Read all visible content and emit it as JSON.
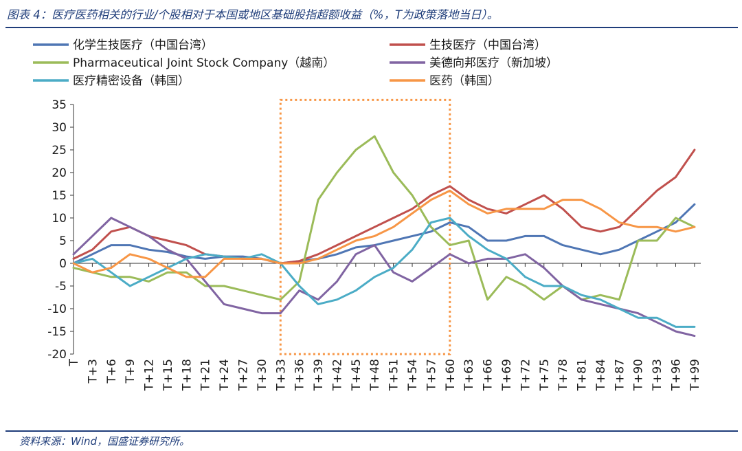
{
  "header": {
    "title": "图表 4：医疗医药相关的行业/个股相对于本国或地区基础股指超额收益（%，T为政策落地当日）。"
  },
  "footer": {
    "source": "资料来源：Wind，国盛证券研究所。"
  },
  "chart_data": {
    "type": "line",
    "title": "医疗医药相关的行业/个股相对于本国或地区基础股指超额收益（%，T为政策落地当日）",
    "xlabel": "",
    "ylabel": "",
    "ylim": [
      -20,
      35
    ],
    "yticks": [
      35,
      30,
      25,
      20,
      15,
      10,
      5,
      0,
      -5,
      -10,
      -15,
      -20
    ],
    "xticks": [
      "T",
      "T+3",
      "T+6",
      "T+9",
      "T+12",
      "T+15",
      "T+18",
      "T+21",
      "T+24",
      "T+27",
      "T+30",
      "T+33",
      "T+36",
      "T+39",
      "T+42",
      "T+45",
      "T+48",
      "T+51",
      "T+54",
      "T+57",
      "T+60",
      "T+63",
      "T+66",
      "T+69",
      "T+72",
      "T+75",
      "T+78",
      "T+81",
      "T+84",
      "T+87",
      "T+90",
      "T+93",
      "T+96",
      "T+99"
    ],
    "x_range": [
      0,
      100
    ],
    "highlight_box": {
      "x_start": 33,
      "x_end": 60,
      "y_start": -20,
      "y_end": 36,
      "color": "#F79646",
      "style": "dotted"
    },
    "legend_position": "top",
    "series": [
      {
        "name": "化学生技医疗（中国台湾）",
        "color": "#4F76B4",
        "points": [
          [
            0,
            0
          ],
          [
            3,
            2
          ],
          [
            6,
            4
          ],
          [
            9,
            4
          ],
          [
            12,
            3
          ],
          [
            15,
            2.5
          ],
          [
            18,
            1.5
          ],
          [
            21,
            1
          ],
          [
            24,
            1.5
          ],
          [
            27,
            1.5
          ],
          [
            30,
            1
          ],
          [
            33,
            0
          ],
          [
            36,
            0.5
          ],
          [
            39,
            1
          ],
          [
            42,
            2
          ],
          [
            45,
            3.5
          ],
          [
            48,
            4
          ],
          [
            51,
            5
          ],
          [
            54,
            6
          ],
          [
            57,
            7
          ],
          [
            60,
            9
          ],
          [
            63,
            8
          ],
          [
            66,
            5
          ],
          [
            69,
            5
          ],
          [
            72,
            6
          ],
          [
            75,
            6
          ],
          [
            78,
            4
          ],
          [
            81,
            3
          ],
          [
            84,
            2
          ],
          [
            87,
            3
          ],
          [
            90,
            5
          ],
          [
            93,
            7
          ],
          [
            96,
            9
          ],
          [
            99,
            13
          ]
        ]
      },
      {
        "name": "生技医疗（中国台湾）",
        "color": "#C0504D",
        "points": [
          [
            0,
            1
          ],
          [
            3,
            3
          ],
          [
            6,
            7
          ],
          [
            9,
            8
          ],
          [
            12,
            6
          ],
          [
            15,
            5
          ],
          [
            18,
            4
          ],
          [
            21,
            2
          ],
          [
            24,
            1.5
          ],
          [
            27,
            1
          ],
          [
            30,
            1
          ],
          [
            33,
            0
          ],
          [
            36,
            0.5
          ],
          [
            39,
            2
          ],
          [
            42,
            4
          ],
          [
            45,
            6
          ],
          [
            48,
            8
          ],
          [
            51,
            10
          ],
          [
            54,
            12
          ],
          [
            57,
            15
          ],
          [
            60,
            17
          ],
          [
            63,
            14
          ],
          [
            66,
            12
          ],
          [
            69,
            11
          ],
          [
            72,
            13
          ],
          [
            75,
            15
          ],
          [
            78,
            12
          ],
          [
            81,
            8
          ],
          [
            84,
            7
          ],
          [
            87,
            8
          ],
          [
            90,
            12
          ],
          [
            93,
            16
          ],
          [
            96,
            19
          ],
          [
            99,
            25
          ]
        ]
      },
      {
        "name": "Pharmaceutical Joint Stock Company（越南）",
        "color": "#9BBB59",
        "points": [
          [
            0,
            -1
          ],
          [
            3,
            -2
          ],
          [
            6,
            -3
          ],
          [
            9,
            -3
          ],
          [
            12,
            -4
          ],
          [
            15,
            -2
          ],
          [
            18,
            -2
          ],
          [
            21,
            -5
          ],
          [
            24,
            -5
          ],
          [
            27,
            -6
          ],
          [
            30,
            -7
          ],
          [
            33,
            -8
          ],
          [
            36,
            -4
          ],
          [
            39,
            14
          ],
          [
            42,
            20
          ],
          [
            45,
            25
          ],
          [
            48,
            28
          ],
          [
            51,
            20
          ],
          [
            54,
            15
          ],
          [
            57,
            8
          ],
          [
            60,
            4
          ],
          [
            63,
            5
          ],
          [
            66,
            -8
          ],
          [
            69,
            -3
          ],
          [
            72,
            -5
          ],
          [
            75,
            -8
          ],
          [
            78,
            -5
          ],
          [
            81,
            -8
          ],
          [
            84,
            -7
          ],
          [
            87,
            -8
          ],
          [
            90,
            5
          ],
          [
            93,
            5
          ],
          [
            96,
            10
          ],
          [
            99,
            8
          ]
        ]
      },
      {
        "name": "美德向邦医疗（新加坡）",
        "color": "#8064A2",
        "points": [
          [
            0,
            2
          ],
          [
            3,
            6
          ],
          [
            6,
            10
          ],
          [
            9,
            8
          ],
          [
            12,
            6
          ],
          [
            15,
            3
          ],
          [
            18,
            1
          ],
          [
            21,
            -4
          ],
          [
            24,
            -9
          ],
          [
            27,
            -10
          ],
          [
            30,
            -11
          ],
          [
            33,
            -11
          ],
          [
            36,
            -6
          ],
          [
            39,
            -8
          ],
          [
            42,
            -4
          ],
          [
            45,
            2
          ],
          [
            48,
            4
          ],
          [
            51,
            -2
          ],
          [
            54,
            -4
          ],
          [
            57,
            -1
          ],
          [
            60,
            2
          ],
          [
            63,
            0
          ],
          [
            66,
            1
          ],
          [
            69,
            1
          ],
          [
            72,
            2
          ],
          [
            75,
            -1
          ],
          [
            78,
            -5
          ],
          [
            81,
            -8
          ],
          [
            84,
            -9
          ],
          [
            87,
            -10
          ],
          [
            90,
            -11
          ],
          [
            93,
            -13
          ],
          [
            96,
            -15
          ],
          [
            99,
            -16
          ]
        ]
      },
      {
        "name": "医疗精密设备（韩国）",
        "color": "#4BACC6",
        "points": [
          [
            0,
            0
          ],
          [
            3,
            1
          ],
          [
            6,
            -2
          ],
          [
            9,
            -5
          ],
          [
            12,
            -3
          ],
          [
            15,
            -1
          ],
          [
            18,
            1
          ],
          [
            21,
            2
          ],
          [
            24,
            1.5
          ],
          [
            27,
            1
          ],
          [
            30,
            2
          ],
          [
            33,
            0
          ],
          [
            36,
            -5
          ],
          [
            39,
            -9
          ],
          [
            42,
            -8
          ],
          [
            45,
            -6
          ],
          [
            48,
            -3
          ],
          [
            51,
            -1
          ],
          [
            54,
            3
          ],
          [
            57,
            9
          ],
          [
            60,
            10
          ],
          [
            63,
            6
          ],
          [
            66,
            3
          ],
          [
            69,
            1
          ],
          [
            72,
            -3
          ],
          [
            75,
            -5
          ],
          [
            78,
            -5
          ],
          [
            81,
            -7
          ],
          [
            84,
            -8
          ],
          [
            87,
            -10
          ],
          [
            90,
            -12
          ],
          [
            93,
            -12
          ],
          [
            96,
            -14
          ],
          [
            99,
            -14
          ]
        ]
      },
      {
        "name": "医药（韩国）",
        "color": "#F79646",
        "points": [
          [
            0,
            0
          ],
          [
            3,
            -2
          ],
          [
            6,
            -1
          ],
          [
            9,
            2
          ],
          [
            12,
            1
          ],
          [
            15,
            -1
          ],
          [
            18,
            -3
          ],
          [
            21,
            -3
          ],
          [
            24,
            1
          ],
          [
            27,
            1
          ],
          [
            30,
            1
          ],
          [
            33,
            0
          ],
          [
            36,
            0
          ],
          [
            39,
            1
          ],
          [
            42,
            3
          ],
          [
            45,
            5
          ],
          [
            48,
            6
          ],
          [
            51,
            8
          ],
          [
            54,
            11
          ],
          [
            57,
            14
          ],
          [
            60,
            16
          ],
          [
            63,
            13
          ],
          [
            66,
            11
          ],
          [
            69,
            12
          ],
          [
            72,
            12
          ],
          [
            75,
            12
          ],
          [
            78,
            14
          ],
          [
            81,
            14
          ],
          [
            84,
            12
          ],
          [
            87,
            9
          ],
          [
            90,
            8
          ],
          [
            93,
            8
          ],
          [
            96,
            7
          ],
          [
            99,
            8
          ]
        ]
      }
    ]
  }
}
